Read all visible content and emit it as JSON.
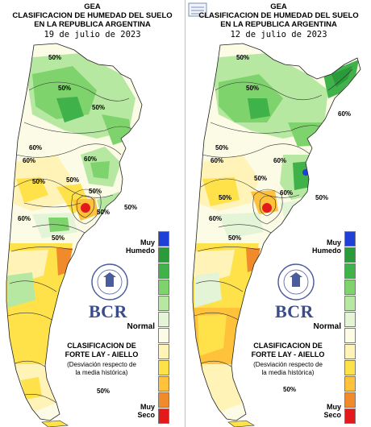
{
  "panels": [
    {
      "gea": "GEA",
      "title1": "CLASIFICACION DE HUMEDAD DEL SUELO",
      "title2": "EN LA REPUBLICA ARGENTINA",
      "date": "19 de julio de 2023",
      "contour_labels": [
        "50%",
        "50%",
        "60%",
        "60%",
        "50%",
        "50%",
        "60%",
        "50%",
        "50%",
        "50%",
        "50%",
        "60%",
        "50%",
        "50%"
      ]
    },
    {
      "gea": "GEA",
      "title1": "CLASIFICACION DE HUMEDAD DEL SUELO",
      "title2": "EN LA REPUBLICA ARGENTINA",
      "date": "12 de julio de 2023",
      "contour_labels": [
        "50%",
        "60%",
        "50%",
        "60%",
        "50%",
        "60%",
        "50%",
        "60%",
        "50%",
        "50%",
        "50%",
        "50%",
        "60%"
      ]
    }
  ],
  "legend": {
    "top_label_1": "Muy",
    "top_label_2": "Humedo",
    "middle_label": "Normal",
    "bottom_label_1": "Muy",
    "bottom_label_2": "Seco",
    "colors": [
      "#1f3fd6",
      "#2a9a3a",
      "#3fb24a",
      "#7fd36c",
      "#b6e8a2",
      "#e3f5d6",
      "#fbfbe6",
      "#fff3b8",
      "#ffe14a",
      "#ffc23a",
      "#f08a2a",
      "#e31a1c"
    ]
  },
  "brand": {
    "name": "BCR",
    "classification_1": "CLASIFICACION DE",
    "classification_2": "FORTE LAY - AIELLO",
    "desc_1": "(Desviación respecto de",
    "desc_2": "la media histórica)"
  }
}
